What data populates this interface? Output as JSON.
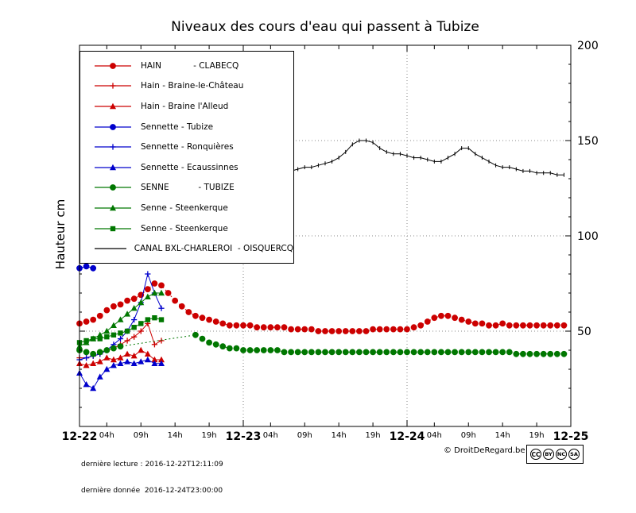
{
  "chart_data": {
    "type": "line",
    "title": "Niveaux des cours d'eau qui passent à Tubize",
    "ylabel": "Hauteur cm",
    "ylim": [
      0,
      200
    ],
    "xlim_hours": [
      0,
      72
    ],
    "x_origin_date": "12-22",
    "grid": true,
    "legend_position": "top-left",
    "y_ticks": [
      50,
      100,
      150,
      200
    ],
    "x_major_ticks": [
      {
        "hour": 0,
        "label": "12-22"
      },
      {
        "hour": 24,
        "label": "12-23"
      },
      {
        "hour": 48,
        "label": "12-24"
      },
      {
        "hour": 72,
        "label": "12-25"
      }
    ],
    "x_minor_ticks": [
      {
        "hour": 4,
        "label": "04h"
      },
      {
        "hour": 9,
        "label": "09h"
      },
      {
        "hour": 14,
        "label": "14h"
      },
      {
        "hour": 19,
        "label": "19h"
      },
      {
        "hour": 28,
        "label": "04h"
      },
      {
        "hour": 33,
        "label": "09h"
      },
      {
        "hour": 38,
        "label": "14h"
      },
      {
        "hour": 43,
        "label": "19h"
      },
      {
        "hour": 52,
        "label": "04h"
      },
      {
        "hour": 57,
        "label": "09h"
      },
      {
        "hour": 62,
        "label": "14h"
      },
      {
        "hour": 67,
        "label": "19h"
      }
    ],
    "series": [
      {
        "name": "HAIN            - CLABECQ",
        "color": "#cc0000",
        "marker": "circle",
        "line": "dotted",
        "points": [
          [
            0,
            54
          ],
          [
            1,
            55
          ],
          [
            2,
            56
          ],
          [
            3,
            58
          ],
          [
            4,
            61
          ],
          [
            5,
            63
          ],
          [
            6,
            64
          ],
          [
            7,
            66
          ],
          [
            8,
            67
          ],
          [
            9,
            69
          ],
          [
            10,
            72
          ],
          [
            11,
            75
          ],
          [
            12,
            74
          ],
          [
            13,
            70
          ],
          [
            14,
            66
          ],
          [
            15,
            63
          ],
          [
            16,
            60
          ],
          [
            17,
            58
          ],
          [
            18,
            57
          ],
          [
            19,
            56
          ],
          [
            20,
            55
          ],
          [
            21,
            54
          ],
          [
            22,
            53
          ],
          [
            23,
            53
          ],
          [
            24,
            53
          ],
          [
            25,
            53
          ],
          [
            26,
            52
          ],
          [
            27,
            52
          ],
          [
            28,
            52
          ],
          [
            29,
            52
          ],
          [
            30,
            52
          ],
          [
            31,
            51
          ],
          [
            32,
            51
          ],
          [
            33,
            51
          ],
          [
            34,
            51
          ],
          [
            35,
            50
          ],
          [
            36,
            50
          ],
          [
            37,
            50
          ],
          [
            38,
            50
          ],
          [
            39,
            50
          ],
          [
            40,
            50
          ],
          [
            41,
            50
          ],
          [
            42,
            50
          ],
          [
            43,
            51
          ],
          [
            44,
            51
          ],
          [
            45,
            51
          ],
          [
            46,
            51
          ],
          [
            47,
            51
          ],
          [
            48,
            51
          ],
          [
            49,
            52
          ],
          [
            50,
            53
          ],
          [
            51,
            55
          ],
          [
            52,
            57
          ],
          [
            53,
            58
          ],
          [
            54,
            58
          ],
          [
            55,
            57
          ],
          [
            56,
            56
          ],
          [
            57,
            55
          ],
          [
            58,
            54
          ],
          [
            59,
            54
          ],
          [
            60,
            53
          ],
          [
            61,
            53
          ],
          [
            62,
            54
          ],
          [
            63,
            53
          ],
          [
            64,
            53
          ],
          [
            65,
            53
          ],
          [
            66,
            53
          ],
          [
            67,
            53
          ],
          [
            68,
            53
          ],
          [
            69,
            53
          ],
          [
            70,
            53
          ],
          [
            71,
            53
          ]
        ]
      },
      {
        "name": "Hain - Braine-le-Château",
        "color": "#cc0000",
        "marker": "plus",
        "line": "solid",
        "points": [
          [
            0,
            36
          ],
          [
            1,
            36
          ],
          [
            2,
            37
          ],
          [
            3,
            38
          ],
          [
            4,
            40
          ],
          [
            5,
            41
          ],
          [
            6,
            43
          ],
          [
            7,
            45
          ],
          [
            8,
            47
          ],
          [
            9,
            50
          ],
          [
            10,
            54
          ],
          [
            11,
            43
          ],
          [
            12,
            45
          ]
        ]
      },
      {
        "name": "Hain - Braine l'Alleud",
        "color": "#cc0000",
        "marker": "triangle",
        "line": "solid",
        "points": [
          [
            0,
            33
          ],
          [
            1,
            32
          ],
          [
            2,
            33
          ],
          [
            3,
            34
          ],
          [
            4,
            36
          ],
          [
            5,
            35
          ],
          [
            6,
            36
          ],
          [
            7,
            38
          ],
          [
            8,
            37
          ],
          [
            9,
            40
          ],
          [
            10,
            38
          ],
          [
            11,
            35
          ],
          [
            12,
            35
          ]
        ]
      },
      {
        "name": "Sennette - Tubize",
        "color": "#0000cc",
        "marker": "circle",
        "line": "solid",
        "points": [
          [
            0,
            83
          ],
          [
            1,
            84
          ],
          [
            2,
            83
          ]
        ]
      },
      {
        "name": "Sennette - Ronquières",
        "color": "#0000cc",
        "marker": "plus",
        "line": "solid",
        "points": [
          [
            0,
            35
          ],
          [
            1,
            36
          ],
          [
            2,
            37
          ],
          [
            3,
            38
          ],
          [
            4,
            40
          ],
          [
            5,
            43
          ],
          [
            6,
            46
          ],
          [
            7,
            50
          ],
          [
            8,
            56
          ],
          [
            9,
            65
          ],
          [
            10,
            80
          ],
          [
            11,
            70
          ],
          [
            12,
            62
          ]
        ]
      },
      {
        "name": "Sennette - Ecaussinnes",
        "color": "#0000cc",
        "marker": "triangle",
        "line": "solid",
        "points": [
          [
            0,
            28
          ],
          [
            1,
            22
          ],
          [
            2,
            20
          ],
          [
            3,
            26
          ],
          [
            4,
            30
          ],
          [
            5,
            32
          ],
          [
            6,
            33
          ],
          [
            7,
            34
          ],
          [
            8,
            33
          ],
          [
            9,
            34
          ],
          [
            10,
            35
          ],
          [
            11,
            33
          ],
          [
            12,
            33
          ]
        ]
      },
      {
        "name": "SENNE           - TUBIZE",
        "color": "#007700",
        "marker": "circle",
        "line": "dotted",
        "points": [
          [
            0,
            40
          ],
          [
            1,
            39
          ],
          [
            2,
            38
          ],
          [
            3,
            39
          ],
          [
            4,
            40
          ],
          [
            5,
            41
          ],
          [
            6,
            42
          ],
          [
            17,
            48
          ],
          [
            18,
            46
          ],
          [
            19,
            44
          ],
          [
            20,
            43
          ],
          [
            21,
            42
          ],
          [
            22,
            41
          ],
          [
            23,
            41
          ],
          [
            24,
            40
          ],
          [
            25,
            40
          ],
          [
            26,
            40
          ],
          [
            27,
            40
          ],
          [
            28,
            40
          ],
          [
            29,
            40
          ],
          [
            30,
            39
          ],
          [
            31,
            39
          ],
          [
            32,
            39
          ],
          [
            33,
            39
          ],
          [
            34,
            39
          ],
          [
            35,
            39
          ],
          [
            36,
            39
          ],
          [
            37,
            39
          ],
          [
            38,
            39
          ],
          [
            39,
            39
          ],
          [
            40,
            39
          ],
          [
            41,
            39
          ],
          [
            42,
            39
          ],
          [
            43,
            39
          ],
          [
            44,
            39
          ],
          [
            45,
            39
          ],
          [
            46,
            39
          ],
          [
            47,
            39
          ],
          [
            48,
            39
          ],
          [
            49,
            39
          ],
          [
            50,
            39
          ],
          [
            51,
            39
          ],
          [
            52,
            39
          ],
          [
            53,
            39
          ],
          [
            54,
            39
          ],
          [
            55,
            39
          ],
          [
            56,
            39
          ],
          [
            57,
            39
          ],
          [
            58,
            39
          ],
          [
            59,
            39
          ],
          [
            60,
            39
          ],
          [
            61,
            39
          ],
          [
            62,
            39
          ],
          [
            63,
            39
          ],
          [
            64,
            38
          ],
          [
            65,
            38
          ],
          [
            66,
            38
          ],
          [
            67,
            38
          ],
          [
            68,
            38
          ],
          [
            69,
            38
          ],
          [
            70,
            38
          ],
          [
            71,
            38
          ]
        ]
      },
      {
        "name": "Senne - Steenkerque",
        "color": "#007700",
        "marker": "triangle",
        "line": "solid",
        "points": [
          [
            0,
            42
          ],
          [
            1,
            44
          ],
          [
            2,
            46
          ],
          [
            3,
            48
          ],
          [
            4,
            50
          ],
          [
            5,
            53
          ],
          [
            6,
            56
          ],
          [
            7,
            59
          ],
          [
            8,
            62
          ],
          [
            9,
            65
          ],
          [
            10,
            68
          ],
          [
            11,
            70
          ],
          [
            12,
            70
          ]
        ]
      },
      {
        "name": "Senne - Steenkerque",
        "color": "#007700",
        "marker": "square",
        "line": "solid",
        "points": [
          [
            0,
            44
          ],
          [
            1,
            45
          ],
          [
            2,
            46
          ],
          [
            3,
            46
          ],
          [
            4,
            47
          ],
          [
            5,
            48
          ],
          [
            6,
            49
          ],
          [
            7,
            50
          ],
          [
            8,
            52
          ],
          [
            9,
            54
          ],
          [
            10,
            56
          ],
          [
            11,
            57
          ],
          [
            12,
            56
          ]
        ]
      },
      {
        "name": "CANAL BXL-CHARLEROI  - OISQUERCQ",
        "color": "#000000",
        "marker": "vtick",
        "line": "solid",
        "points": [
          [
            0,
            140
          ],
          [
            1,
            139
          ],
          [
            2,
            138
          ],
          [
            3,
            137
          ],
          [
            4,
            136
          ],
          [
            5,
            136
          ],
          [
            6,
            135
          ],
          [
            7,
            135
          ],
          [
            8,
            135
          ],
          [
            9,
            134
          ],
          [
            10,
            134
          ],
          [
            11,
            134
          ],
          [
            12,
            134
          ],
          [
            13,
            134
          ],
          [
            14,
            134
          ],
          [
            15,
            134
          ],
          [
            16,
            134
          ],
          [
            17,
            134
          ],
          [
            18,
            134
          ],
          [
            19,
            134
          ],
          [
            20,
            134
          ],
          [
            21,
            134
          ],
          [
            22,
            134
          ],
          [
            23,
            134
          ],
          [
            24,
            134
          ],
          [
            25,
            134
          ],
          [
            26,
            134
          ],
          [
            27,
            134
          ],
          [
            28,
            134
          ],
          [
            29,
            134
          ],
          [
            30,
            134
          ],
          [
            31,
            134
          ],
          [
            32,
            135
          ],
          [
            33,
            136
          ],
          [
            34,
            136
          ],
          [
            35,
            137
          ],
          [
            36,
            138
          ],
          [
            37,
            139
          ],
          [
            38,
            141
          ],
          [
            39,
            144
          ],
          [
            40,
            148
          ],
          [
            41,
            150
          ],
          [
            42,
            150
          ],
          [
            43,
            149
          ],
          [
            44,
            146
          ],
          [
            45,
            144
          ],
          [
            46,
            143
          ],
          [
            47,
            143
          ],
          [
            48,
            142
          ],
          [
            49,
            141
          ],
          [
            50,
            141
          ],
          [
            51,
            140
          ],
          [
            52,
            139
          ],
          [
            53,
            139
          ],
          [
            54,
            141
          ],
          [
            55,
            143
          ],
          [
            56,
            146
          ],
          [
            57,
            146
          ],
          [
            58,
            143
          ],
          [
            59,
            141
          ],
          [
            60,
            139
          ],
          [
            61,
            137
          ],
          [
            62,
            136
          ],
          [
            63,
            136
          ],
          [
            64,
            135
          ],
          [
            65,
            134
          ],
          [
            66,
            134
          ],
          [
            67,
            133
          ],
          [
            68,
            133
          ],
          [
            69,
            133
          ],
          [
            70,
            132
          ],
          [
            71,
            132
          ]
        ]
      }
    ]
  },
  "footer": {
    "last_reading": "dernière lecture : 2016-12-22T12:11:09",
    "last_data": "dernière donnée  2016-12-24T23:00:00",
    "copyright": "© DroitDeRegard.be",
    "license": [
      "CC",
      "BY",
      "NC",
      "SA"
    ]
  }
}
